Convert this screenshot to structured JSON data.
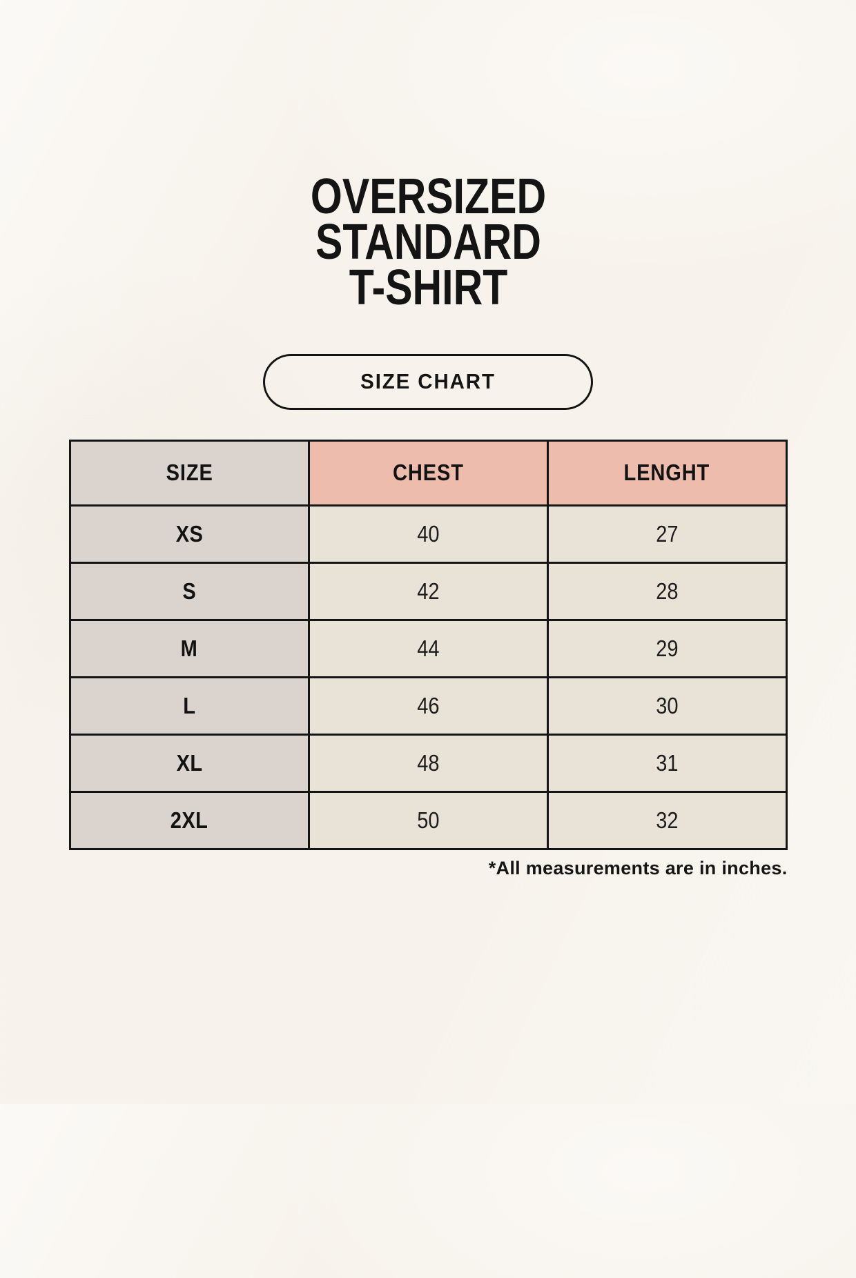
{
  "page": {
    "background_color": "#f7f3ec"
  },
  "title": {
    "line1": "OVERSIZED",
    "line2": "STANDARD",
    "line3": "T-SHIRT"
  },
  "size_chart_button": {
    "label": "SIZE CHART"
  },
  "size_table": {
    "headers": {
      "size": "SIZE",
      "chest": "CHEST",
      "length": "LENGHT"
    },
    "rows": [
      {
        "size": "XS",
        "chest": "40",
        "length": "27"
      },
      {
        "size": "S",
        "chest": "42",
        "length": "28"
      },
      {
        "size": "M",
        "chest": "44",
        "length": "29"
      },
      {
        "size": "L",
        "chest": "46",
        "length": "30"
      },
      {
        "size": "XL",
        "chest": "48",
        "length": "31"
      },
      {
        "size": "2XL",
        "chest": "50",
        "length": "32"
      }
    ],
    "colors": {
      "size_column_bg": "#dbd4ce",
      "measurement_header_bg": "#eebcac",
      "data_cell_bg": "#e9e2d7",
      "border": "#141414"
    }
  },
  "footnote": {
    "text": "*All measurements are in inches."
  }
}
